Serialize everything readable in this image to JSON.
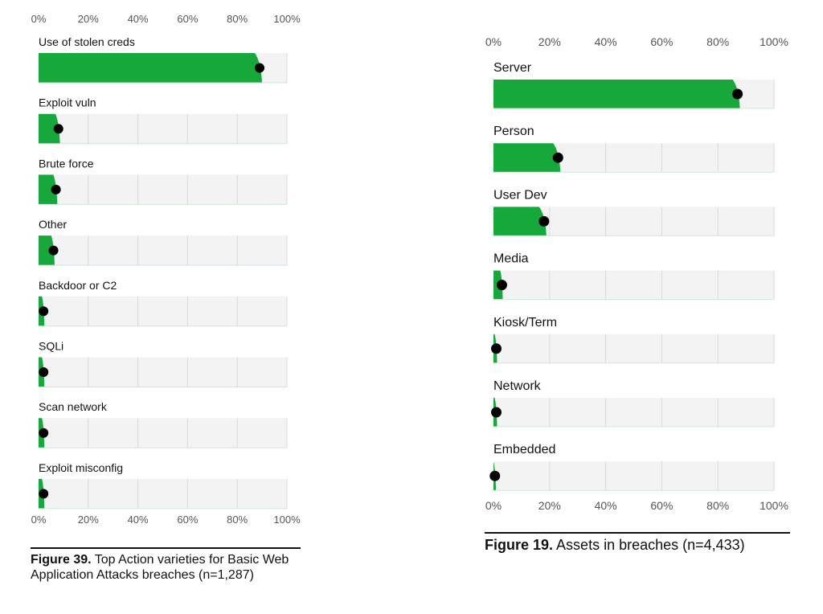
{
  "chart_data": [
    {
      "type": "bar",
      "figure_label": "Figure 39.",
      "title": "Top Action varieties for Basic Web Application Attacks breaches (n=1,287)",
      "categories": [
        "Use of stolen creds",
        "Exploit vuln",
        "Brute force",
        "Other",
        "Backdoor or C2",
        "SQLi",
        "Scan network",
        "Exploit misconfig"
      ],
      "values": [
        89,
        8,
        7,
        6,
        2,
        2,
        2,
        2
      ],
      "x_ticks": [
        "0%",
        "20%",
        "40%",
        "60%",
        "80%",
        "100%"
      ],
      "xlim": [
        0,
        100
      ],
      "grid": true,
      "colors": {
        "bar": "#16a83b",
        "track": "#f3f3f3",
        "grid": "#d9d9d9",
        "point": "#000000"
      }
    },
    {
      "type": "bar",
      "figure_label": "Figure 19.",
      "title": "Assets in breaches (n=4,433)",
      "categories": [
        "Server",
        "Person",
        "User Dev",
        "Media",
        "Kiosk/Term",
        "Network",
        "Embedded"
      ],
      "values": [
        87,
        23,
        18,
        3,
        1,
        1,
        0.5
      ],
      "x_ticks": [
        "0%",
        "20%",
        "40%",
        "60%",
        "80%",
        "100%"
      ],
      "xlim": [
        0,
        100
      ],
      "grid": true,
      "colors": {
        "bar": "#16a83b",
        "track": "#f3f3f3",
        "grid": "#d9d9d9",
        "point": "#000000"
      }
    }
  ]
}
